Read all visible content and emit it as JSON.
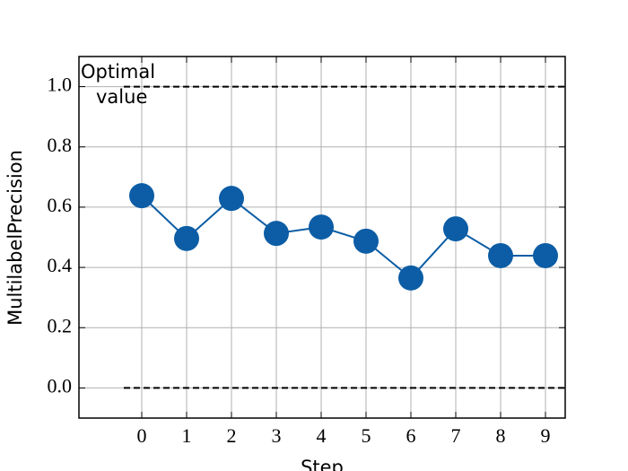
{
  "chart_data": {
    "type": "line",
    "x_label": "Step",
    "y_label": "MultilabelPrecision",
    "x": [
      0,
      1,
      2,
      3,
      4,
      5,
      6,
      7,
      8,
      9
    ],
    "series": [
      {
        "name": "MultilabelPrecision",
        "color": "#0C5DA5",
        "values": [
          0.638,
          0.496,
          0.629,
          0.513,
          0.534,
          0.487,
          0.365,
          0.528,
          0.439,
          0.439
        ]
      }
    ],
    "hlines": [
      {
        "y": 1.0,
        "xmin": -0.4
      },
      {
        "y": 0.0,
        "xmin": -0.4
      }
    ],
    "annotation": [
      "Optimal",
      "value"
    ],
    "xlim": [
      -1.4,
      9.44
    ],
    "ylim": [
      -0.1,
      1.1
    ],
    "xticks": [
      0,
      1,
      2,
      3,
      4,
      5,
      6,
      7,
      8,
      9
    ],
    "yticks": [
      {
        "value": 0,
        "label": "0.0"
      },
      {
        "value": 0.2,
        "label": "0.2"
      },
      {
        "value": 0.4,
        "label": "0.4"
      },
      {
        "value": 0.6,
        "label": "0.6"
      },
      {
        "value": 0.8,
        "label": "0.8"
      },
      {
        "value": 1.0,
        "label": "1.0"
      }
    ],
    "grid": true
  }
}
